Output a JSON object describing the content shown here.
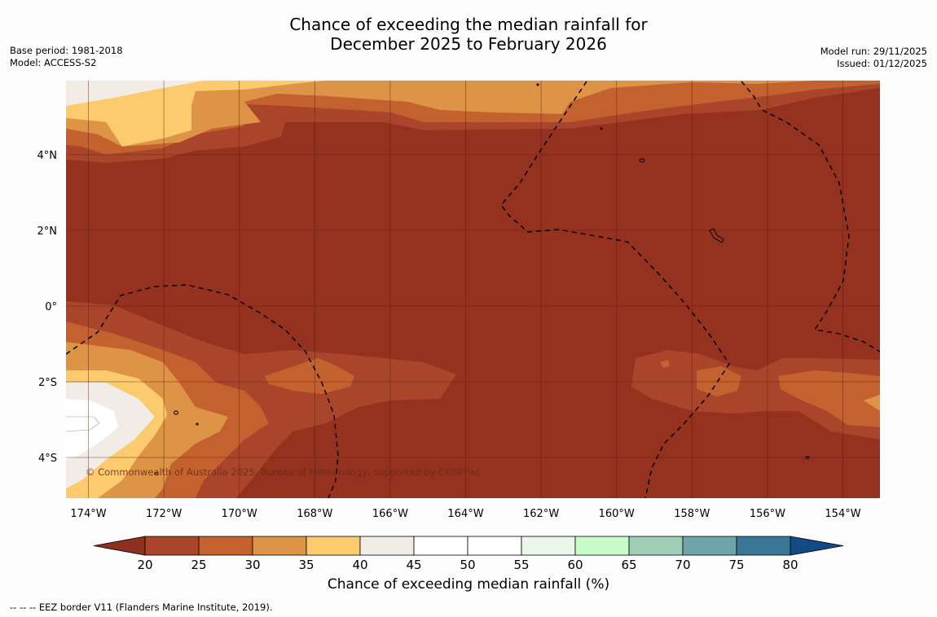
{
  "title": {
    "line1": "Chance of exceeding the median rainfall for",
    "line2": "December 2025 to February 2026"
  },
  "meta_left": {
    "base_period": "Base period: 1981-2018",
    "model": "Model: ACCESS-S2"
  },
  "meta_right": {
    "model_run": "Model run: 29/11/2025",
    "issued": "Issued: 01/12/2025"
  },
  "map": {
    "lon_labels": [
      "174°W",
      "172°W",
      "170°W",
      "168°W",
      "166°W",
      "164°W",
      "162°W",
      "160°W",
      "158°W",
      "156°W",
      "154°W"
    ],
    "lat_labels": [
      "4°N",
      "2°N",
      "0°",
      "2°S",
      "4°S"
    ],
    "copyright": "© Commonwealth of Australia 2025, Bureau of Meteorology, supported by COSPPac"
  },
  "colorbar": {
    "ticks": [
      "20",
      "25",
      "30",
      "35",
      "40",
      "45",
      "50",
      "55",
      "60",
      "65",
      "70",
      "75",
      "80"
    ],
    "colors": [
      "#8e2f1f",
      "#a8452a",
      "#c4622f",
      "#de9446",
      "#fccb6e",
      "#f1ede6",
      "#ffffff",
      "#ffffff",
      "#e9f6e9",
      "#c8fcc8",
      "#9ecfb6",
      "#6fa4a8",
      "#3a7696",
      "#134a86"
    ],
    "label": "Chance of exceeding median rainfall (%)"
  },
  "footnote": "--  --  -- EEZ border V11 (Flanders Marine Institute, 2019)."
}
